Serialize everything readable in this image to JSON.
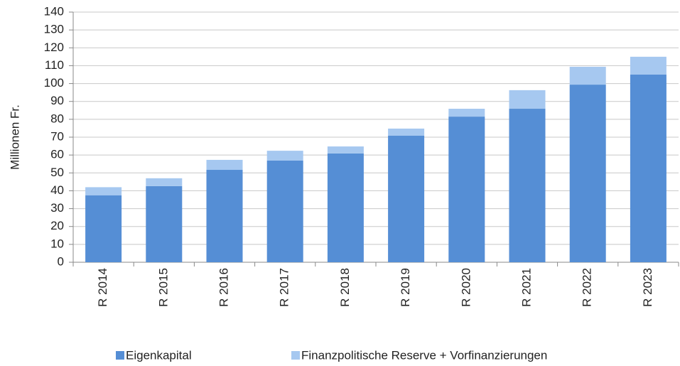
{
  "chart_data": {
    "type": "bar",
    "stacked": true,
    "ylabel": "Millionen Fr.",
    "categories": [
      "R 2014",
      "R 2015",
      "R 2016",
      "R 2017",
      "R 2018",
      "R 2019",
      "R 2020",
      "R 2021",
      "R 2022",
      "R 2023"
    ],
    "series": [
      {
        "name": "Eigenkapital",
        "color": "#558ed5",
        "values": [
          37.5,
          42.6,
          51.7,
          56.9,
          60.9,
          70.8,
          81.5,
          85.9,
          99.4,
          105
        ]
      },
      {
        "name": "Finanzpolitische Reserve + Vorfinanzierungen",
        "color": "#a6c8f0",
        "values": [
          4.5,
          4.4,
          5.6,
          5.5,
          3.9,
          4,
          4.4,
          10.4,
          10,
          10
        ]
      }
    ],
    "ylim": [
      0,
      140
    ],
    "yticks": [
      0,
      10,
      20,
      30,
      40,
      50,
      60,
      70,
      80,
      90,
      100,
      110,
      120,
      130,
      140
    ],
    "grid": true,
    "legend": "bottom"
  }
}
